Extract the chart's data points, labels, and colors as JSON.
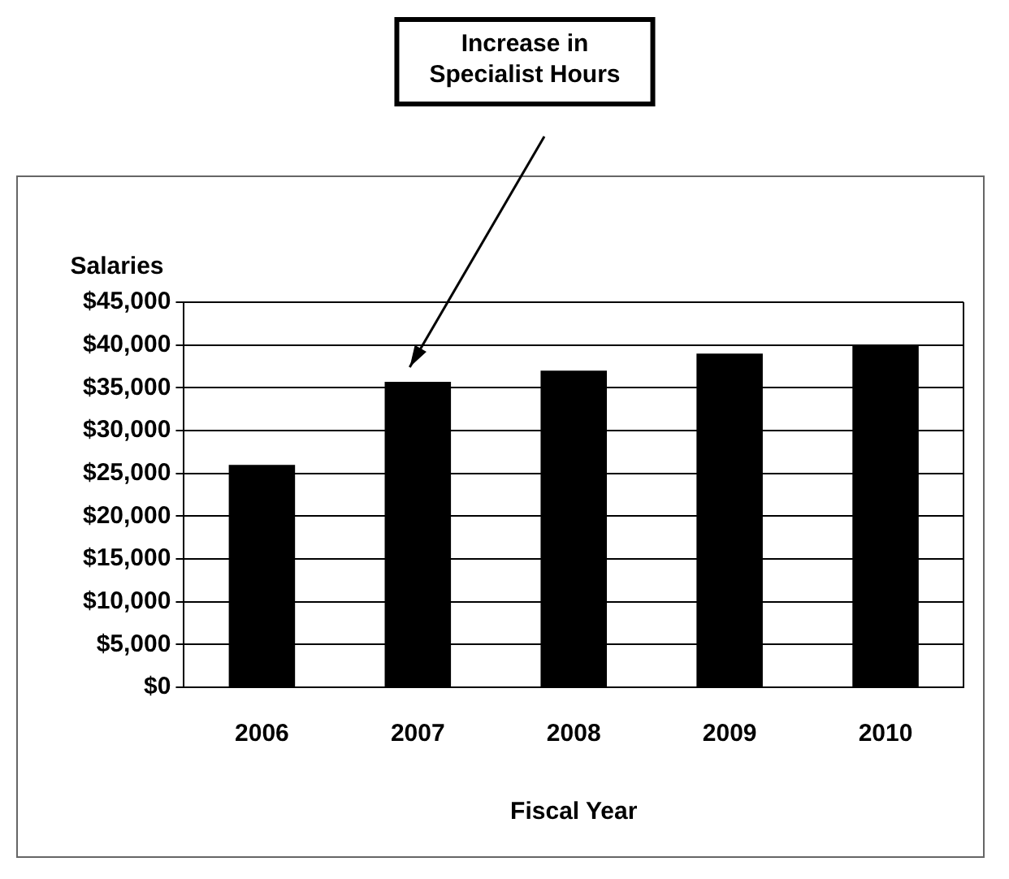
{
  "chart_data": {
    "type": "bar",
    "categories": [
      "2006",
      "2007",
      "2008",
      "2009",
      "2010"
    ],
    "values": [
      26000,
      35700,
      37000,
      39000,
      40000
    ],
    "color": "#000000",
    "ylabel": "Salaries",
    "xlabel": "Fiscal Year",
    "ylim": [
      0,
      45000
    ],
    "yticks": [
      {
        "value": 0,
        "label": "$0"
      },
      {
        "value": 5000,
        "label": "$5,000"
      },
      {
        "value": 10000,
        "label": "$10,000"
      },
      {
        "value": 15000,
        "label": "$15,000"
      },
      {
        "value": 20000,
        "label": "$20,000"
      },
      {
        "value": 25000,
        "label": "$25,000"
      },
      {
        "value": 30000,
        "label": "$30,000"
      },
      {
        "value": 35000,
        "label": "$35,000"
      },
      {
        "value": 40000,
        "label": "$40,000"
      },
      {
        "value": 45000,
        "label": "$45,000"
      }
    ],
    "grid": "y",
    "legend": false,
    "annotations": [
      "Increase in Specialist Hours"
    ]
  }
}
